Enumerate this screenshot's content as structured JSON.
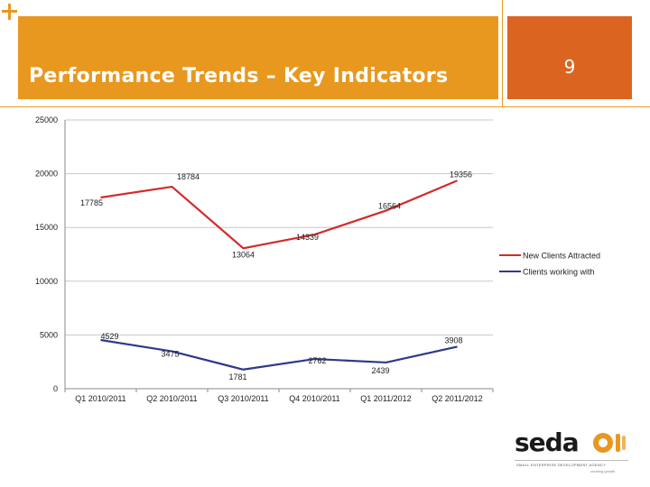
{
  "header": {
    "title": "Performance Trends – Key Indicators",
    "page_number": "9"
  },
  "colors": {
    "header_orange": "#E8981F",
    "page_box_orange": "#DB6520",
    "series_red": "#D32B2B",
    "series_navy": "#2E3A87"
  },
  "logo": {
    "word": "seda",
    "subtitle": "SMALL ENTERPRISE DEVELOPMENT AGENCY",
    "tagline": "creating growth"
  },
  "chart_data": {
    "type": "line",
    "categories": [
      "Q1 2010/2011",
      "Q2 2010/2011",
      "Q3 2010/2011",
      "Q4 2010/2011",
      "Q1 2011/2012",
      "Q2 2011/2012"
    ],
    "ylim": [
      0,
      25000
    ],
    "yticks": [
      0,
      5000,
      10000,
      15000,
      20000,
      25000
    ],
    "grid": "horizontal",
    "legend_position": "right",
    "series": [
      {
        "name": "New Clients Attracted",
        "values": [
          17785,
          18784,
          13064,
          14339,
          16564,
          19356
        ],
        "color": "#D32B2B"
      },
      {
        "name": "Clients working with",
        "values": [
          4529,
          3475,
          1781,
          2762,
          2439,
          3908
        ],
        "color": "#2E3A87"
      }
    ],
    "xlabel": "",
    "ylabel": ""
  }
}
